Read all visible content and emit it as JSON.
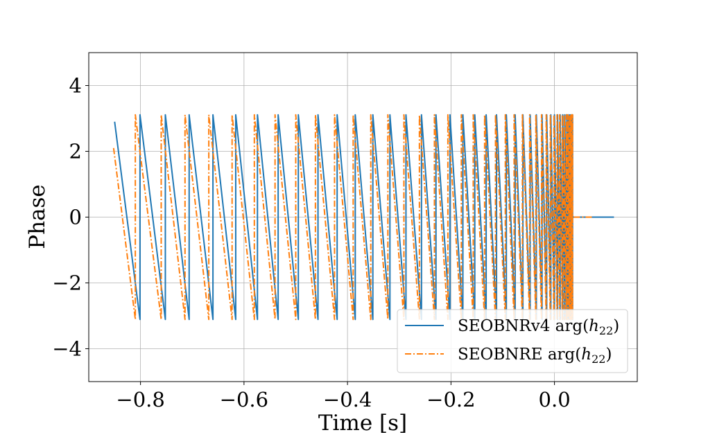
{
  "chart_data": {
    "type": "line",
    "title": "",
    "xlabel": "Time [s]",
    "ylabel": "Phase",
    "xlim": [
      -0.9,
      0.16
    ],
    "ylim": [
      -5,
      5
    ],
    "grid": true,
    "legend_position": "lower-right",
    "x_ticks": [
      -0.8,
      -0.6,
      -0.4,
      -0.2,
      0.0
    ],
    "x_tick_labels": [
      "−0.8",
      "−0.6",
      "−0.4",
      "−0.2",
      "0.0"
    ],
    "y_ticks": [
      -4,
      -2,
      0,
      2,
      4
    ],
    "y_tick_labels": [
      "−4",
      "−2",
      "0",
      "2",
      "4"
    ],
    "series": [
      {
        "name": "SEOBNRv4 arg(h22)",
        "label_main": "SEOBNRv4 arg(",
        "label_sym": "h",
        "label_sub": "22",
        "label_close": ")",
        "color": "#1f77b4",
        "style": "solid",
        "start_time": -0.85,
        "start_phase": 2.9,
        "wrap_times": [
          -0.801,
          -0.752,
          -0.706,
          -0.66,
          -0.616,
          -0.574,
          -0.534,
          -0.495,
          -0.457,
          -0.42,
          -0.385,
          -0.351,
          -0.318,
          -0.287,
          -0.257,
          -0.229,
          -0.202,
          -0.177,
          -0.154,
          -0.132,
          -0.112,
          -0.093,
          -0.076,
          -0.061,
          -0.047,
          -0.035,
          -0.024,
          -0.015,
          -0.007,
          0.0,
          0.006,
          0.011,
          0.016,
          0.02,
          0.024,
          0.027,
          0.03,
          0.033,
          0.035
        ],
        "tail": [
          [
            0.035,
            0.0
          ],
          [
            0.115,
            0.0
          ]
        ]
      },
      {
        "name": "SEOBNRE arg(h22)",
        "label_main": "SEOBNRE arg(",
        "label_sym": "h",
        "label_sub": "22",
        "label_close": ")",
        "color": "#ff7f0e",
        "style": "dashdot",
        "start_time": -0.852,
        "start_phase": 2.1,
        "wrap_times": [
          -0.81,
          -0.76,
          -0.714,
          -0.668,
          -0.623,
          -0.58,
          -0.54,
          -0.5,
          -0.462,
          -0.425,
          -0.389,
          -0.355,
          -0.322,
          -0.291,
          -0.261,
          -0.232,
          -0.206,
          -0.18,
          -0.157,
          -0.135,
          -0.114,
          -0.095,
          -0.078,
          -0.062,
          -0.048,
          -0.036,
          -0.025,
          -0.016,
          -0.008,
          -0.001,
          0.005,
          0.01,
          0.015,
          0.019,
          0.023,
          0.026,
          0.029,
          0.031,
          0.033,
          0.035
        ],
        "tail": [
          [
            0.035,
            0.0
          ],
          [
            0.075,
            0.0
          ]
        ]
      }
    ]
  }
}
